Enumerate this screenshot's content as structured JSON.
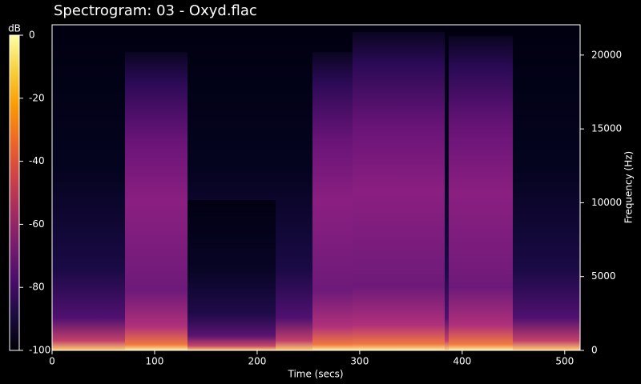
{
  "chart_data": {
    "type": "spectrogram",
    "title": "Spectrogram: 03 - Oxyd.flac",
    "x_label": "Time (secs)",
    "y_label": "Frequency (Hz)",
    "xlim": [
      0,
      515
    ],
    "xticks": [
      0,
      100,
      200,
      300,
      400,
      500
    ],
    "ylim": [
      0,
      22050
    ],
    "yticks": [
      0,
      5000,
      10000,
      15000,
      20000
    ],
    "colorbar": {
      "label": "dB",
      "lim": [
        -100,
        0
      ],
      "ticks": [
        0,
        -20,
        -40,
        -60,
        -80,
        -100
      ],
      "cmap": "inferno"
    }
  }
}
